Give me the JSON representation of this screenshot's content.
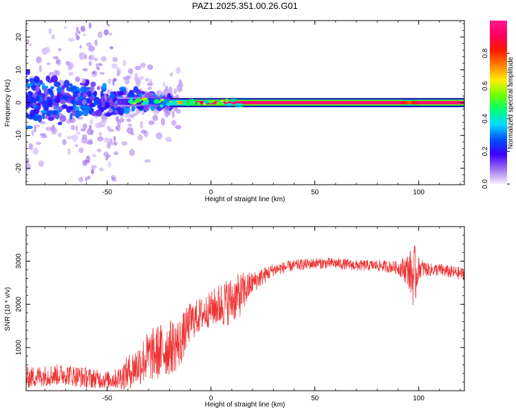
{
  "figure": {
    "title": "PAZ1.2025.351.00.26.G01"
  },
  "chart_data": [
    {
      "type": "heatmap",
      "xlabel": "Height of straight line (km)",
      "ylabel": "Frequency (Hz)",
      "xlim": [
        -89,
        122
      ],
      "ylim": [
        -25,
        25
      ],
      "xticks": [
        -50,
        0,
        50,
        100
      ],
      "yticks": [
        -20,
        -10,
        0,
        10,
        20
      ],
      "colorbar": {
        "label": "Normalized spectral amplitude",
        "range": [
          0,
          1
        ],
        "ticks": [
          0.0,
          0.2,
          0.4,
          0.6,
          0.8
        ],
        "tick_labels": [
          "0.0",
          "0.2",
          "0.4",
          "0.6",
          "0.8"
        ],
        "colors": [
          "#f5f0ff",
          "#a070f0",
          "#3a00ff",
          "#0050ff",
          "#00dcff",
          "#00ff70",
          "#70ff00",
          "#ffee00",
          "#ff8000",
          "#ff1a00",
          "#ff0060",
          "#ff1a8c"
        ]
      },
      "ridge": {
        "x": [
          -89,
          -60,
          -40,
          -30,
          -20,
          -15,
          -10,
          0,
          10,
          20,
          50,
          90,
          95,
          100,
          122
        ],
        "freq": [
          1.0,
          0.5,
          0.2,
          0.5,
          0.0,
          0.0,
          0.0,
          0.0,
          0.0,
          0.0,
          0.0,
          0.0,
          0.0,
          0.0,
          0.0
        ],
        "amplitude": [
          0.15,
          0.18,
          0.3,
          0.45,
          0.6,
          0.7,
          0.85,
          0.95,
          0.95,
          0.95,
          0.95,
          0.95,
          0.75,
          0.95,
          0.95
        ]
      }
    },
    {
      "type": "line",
      "xlabel": "Height of straight line (km)",
      "ylabel": "SNR (10 * v/v)",
      "xlim": [
        -89,
        122
      ],
      "ylim": [
        0,
        3800
      ],
      "xticks": [
        -50,
        0,
        50,
        100
      ],
      "yticks": [
        1000,
        2000,
        3000
      ],
      "series": [
        {
          "name": "SNR",
          "color": "#ee3333",
          "x": [
            -89,
            -80,
            -70,
            -60,
            -50,
            -45,
            -40,
            -35,
            -30,
            -25,
            -20,
            -15,
            -10,
            -5,
            0,
            5,
            10,
            15,
            20,
            25,
            30,
            40,
            50,
            60,
            70,
            80,
            90,
            95,
            98,
            100,
            105,
            110,
            115,
            122
          ],
          "y": [
            300,
            350,
            380,
            300,
            250,
            280,
            420,
            600,
            800,
            900,
            1000,
            1100,
            1600,
            1750,
            1900,
            2000,
            2100,
            2250,
            2500,
            2650,
            2800,
            2900,
            2950,
            2950,
            2900,
            2900,
            2850,
            2800,
            2600,
            2850,
            2800,
            2800,
            2750,
            2700
          ],
          "noise": [
            250,
            250,
            250,
            250,
            200,
            250,
            400,
            500,
            600,
            650,
            650,
            600,
            450,
            400,
            400,
            550,
            550,
            500,
            250,
            200,
            150,
            130,
            130,
            130,
            130,
            130,
            150,
            400,
            800,
            250,
            150,
            150,
            150,
            150
          ]
        }
      ]
    }
  ]
}
